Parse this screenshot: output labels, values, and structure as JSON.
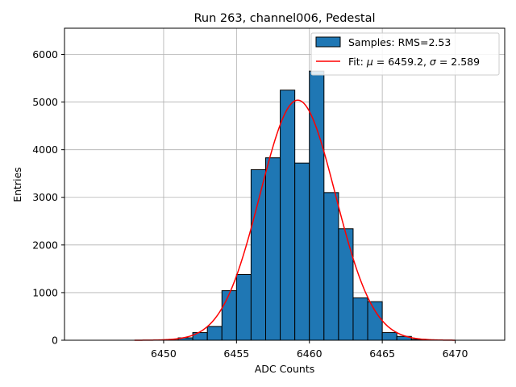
{
  "chart_data": {
    "type": "bar",
    "title": "Run 263, channel006, Pedestal",
    "xlabel": "ADC Counts",
    "ylabel": "Entries",
    "xlim": [
      6443.2,
      6473.4
    ],
    "ylim": [
      0,
      6550
    ],
    "xticks": [
      6450,
      6455,
      6460,
      6465,
      6470
    ],
    "yticks": [
      0,
      1000,
      2000,
      3000,
      4000,
      5000,
      6000
    ],
    "grid": true,
    "legend_position": "top-right",
    "histogram": {
      "name": "Samples: RMS=2.53",
      "color": "#1f77b4",
      "bin_width": 1,
      "bins": [
        {
          "left": 6450,
          "count": 5
        },
        {
          "left": 6451,
          "count": 50
        },
        {
          "left": 6452,
          "count": 160
        },
        {
          "left": 6453,
          "count": 290
        },
        {
          "left": 6454,
          "count": 1040
        },
        {
          "left": 6455,
          "count": 1380
        },
        {
          "left": 6456,
          "count": 3580
        },
        {
          "left": 6457,
          "count": 3830
        },
        {
          "left": 6458,
          "count": 5250
        },
        {
          "left": 6459,
          "count": 3720
        },
        {
          "left": 6460,
          "count": 5650
        },
        {
          "left": 6461,
          "count": 3100
        },
        {
          "left": 6462,
          "count": 2340
        },
        {
          "left": 6463,
          "count": 890
        },
        {
          "left": 6464,
          "count": 810
        },
        {
          "left": 6465,
          "count": 160
        },
        {
          "left": 6466,
          "count": 80
        },
        {
          "left": 6467,
          "count": 20
        },
        {
          "left": 6468,
          "count": 5
        }
      ]
    },
    "fit": {
      "legend_prefix": "Fit: ",
      "mu_symbol": "μ",
      "mu_text": " = 6459.2, ",
      "sigma_symbol": "σ",
      "sigma_text": " = 2.589",
      "color": "#ff0000",
      "mu": 6459.2,
      "sigma": 2.589,
      "amplitude": 5040,
      "x_range": [
        6448,
        6470
      ]
    }
  }
}
